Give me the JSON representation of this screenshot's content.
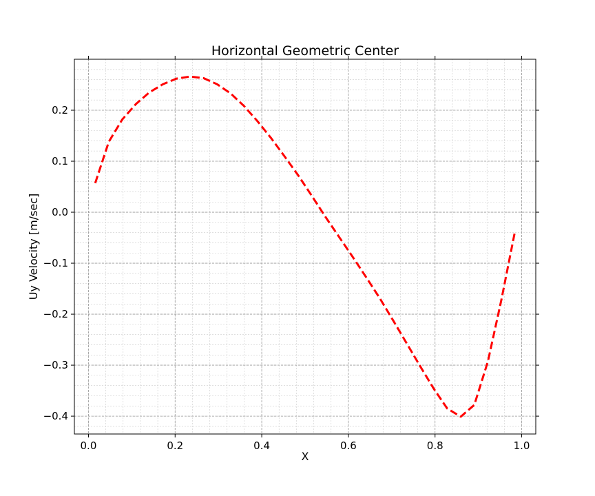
{
  "chart_data": {
    "type": "line",
    "title": "Horizontal Geometric Center",
    "xlabel": "X",
    "ylabel": "Uy Velocity [m/sec]",
    "xlim": [
      -0.0325,
      1.0325
    ],
    "ylim": [
      -0.435,
      0.3
    ],
    "xticks": [
      0.0,
      0.2,
      0.4,
      0.6,
      0.8,
      1.0
    ],
    "xtick_labels": [
      "0.0",
      "0.2",
      "0.4",
      "0.6",
      "0.8",
      "1.0"
    ],
    "yticks": [
      -0.4,
      -0.3,
      -0.2,
      -0.1,
      0.0,
      0.1,
      0.2
    ],
    "ytick_labels": [
      "−0.4",
      "−0.3",
      "−0.2",
      "−0.1",
      "0.0",
      "0.1",
      "0.2"
    ],
    "grid": true,
    "minor_grid": true,
    "series": [
      {
        "name": "",
        "color": "#ff0000",
        "style": "dashed",
        "x": [
          0.0156,
          0.0469,
          0.0781,
          0.1094,
          0.1406,
          0.1719,
          0.2031,
          0.2344,
          0.2656,
          0.2969,
          0.3281,
          0.3594,
          0.3906,
          0.4219,
          0.4531,
          0.4844,
          0.5156,
          0.5469,
          0.5781,
          0.6094,
          0.6406,
          0.6719,
          0.7031,
          0.7344,
          0.7656,
          0.7969,
          0.8281,
          0.8594,
          0.8906,
          0.9219,
          0.9531,
          0.9844
        ],
        "y": [
          0.057,
          0.138,
          0.182,
          0.212,
          0.235,
          0.251,
          0.262,
          0.266,
          0.263,
          0.251,
          0.233,
          0.208,
          0.178,
          0.145,
          0.109,
          0.072,
          0.032,
          -0.009,
          -0.048,
          -0.087,
          -0.127,
          -0.168,
          -0.212,
          -0.257,
          -0.302,
          -0.346,
          -0.385,
          -0.401,
          -0.378,
          -0.293,
          -0.172,
          -0.038
        ]
      }
    ]
  }
}
